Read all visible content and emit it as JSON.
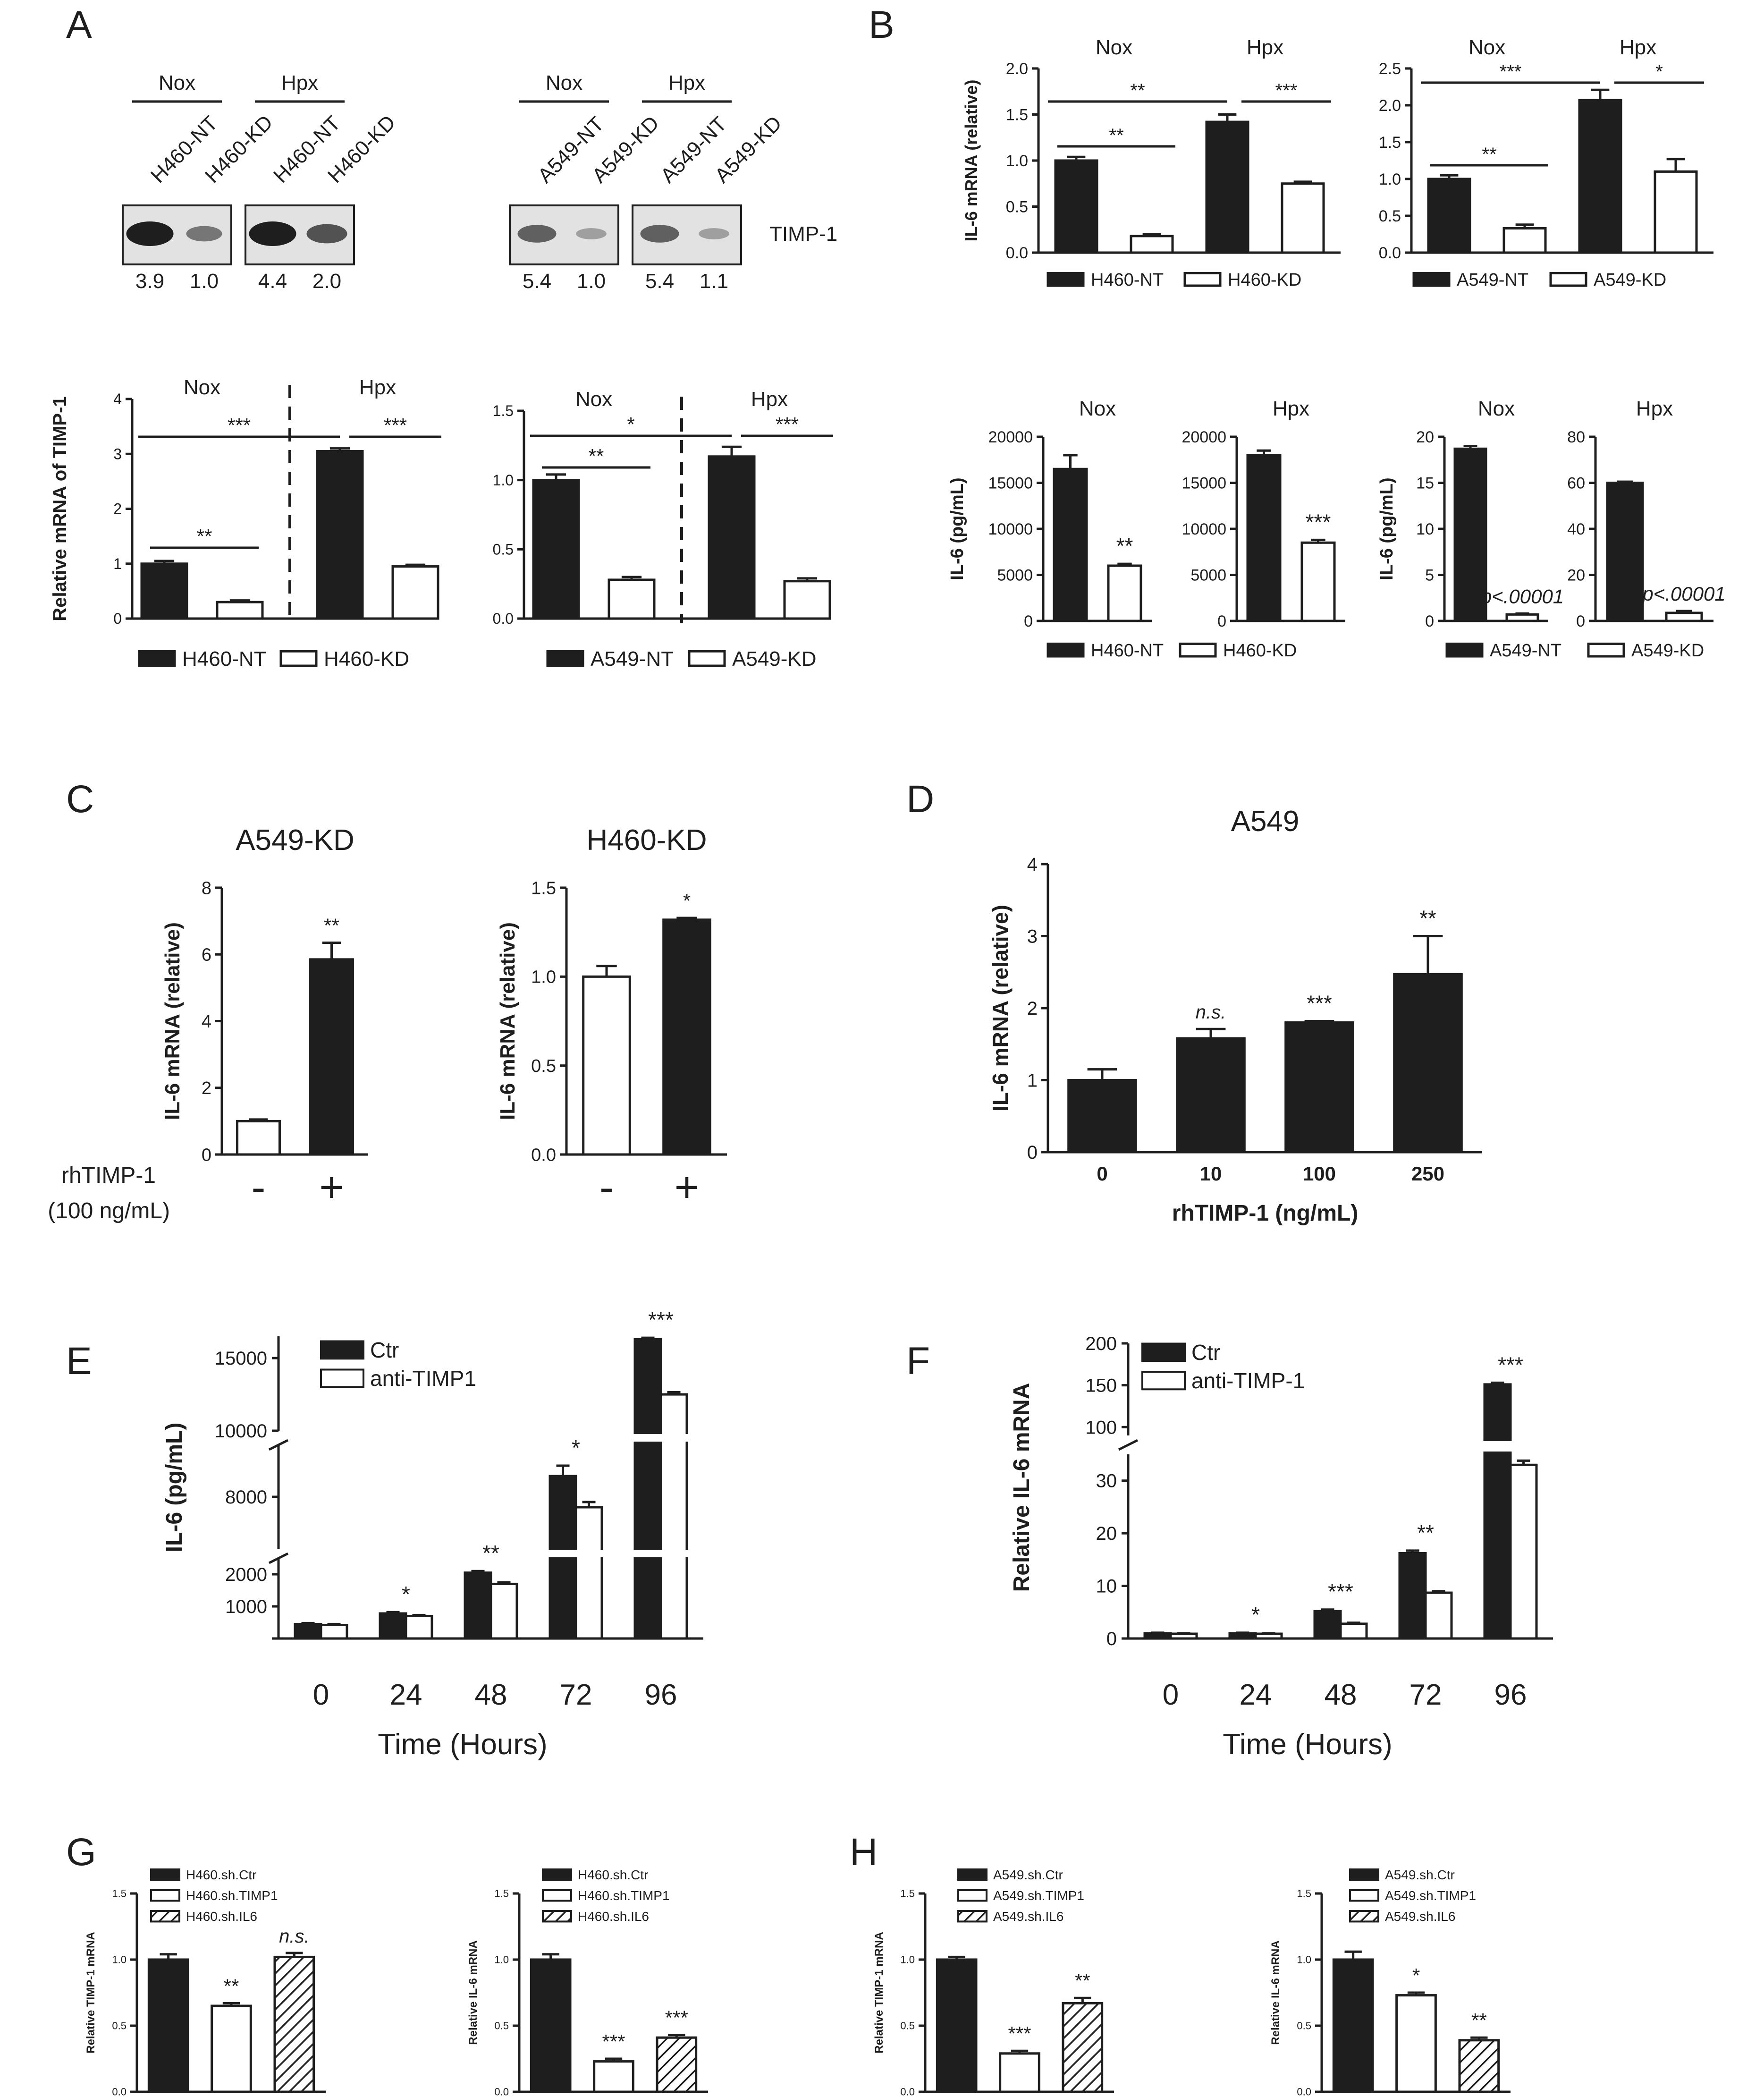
{
  "chart_data": [
    {
      "panel": "A",
      "type": "blot",
      "blots": [
        {
          "groups": [
            "Nox",
            "Hpx"
          ],
          "lanes": [
            "H460-NT",
            "H460-KD",
            "H460-NT",
            "H460-KD"
          ],
          "quant": [
            "3.9",
            "1.0",
            "4.4",
            "2.0"
          ]
        },
        {
          "groups": [
            "Nox",
            "Hpx"
          ],
          "lanes": [
            "A549-NT",
            "A549-KD",
            "A549-NT",
            "A549-KD"
          ],
          "quant": [
            "5.4",
            "1.0",
            "5.4",
            "1.1"
          ]
        }
      ],
      "label": "TIMP-1"
    },
    {
      "panel": "A",
      "type": "bar",
      "ylabel": "Relative mRNA of TIMP-1",
      "ylim": [
        0,
        4
      ],
      "yticks": [
        "0",
        "1",
        "2",
        "3",
        "4"
      ],
      "groups": [
        "Nox",
        "Hpx"
      ],
      "categories": [
        "H460-NT",
        "H460-KD",
        "H460-NT",
        "H460-KD"
      ],
      "values": [
        1.0,
        0.3,
        3.05,
        0.95
      ],
      "errors": [
        0.05,
        0.03,
        0.05,
        0.03
      ],
      "fills": [
        "black",
        "white",
        "black",
        "white"
      ],
      "legend": [
        "H460-NT",
        "H460-KD"
      ],
      "sig": [
        {
          "label": "***",
          "from": 0,
          "to": 2
        },
        {
          "label": "***",
          "from": 2,
          "to": 3
        },
        {
          "label": "**",
          "from": 0,
          "to": 1
        }
      ]
    },
    {
      "panel": "A",
      "type": "bar",
      "ylabel": "",
      "ylim": [
        0,
        1.5
      ],
      "yticks": [
        "0.0",
        "0.5",
        "1.0",
        "1.5"
      ],
      "groups": [
        "Nox",
        "Hpx"
      ],
      "categories": [
        "A549-NT",
        "A549-KD",
        "A549-NT",
        "A549-KD"
      ],
      "values": [
        1.0,
        0.28,
        1.17,
        0.27
      ],
      "errors": [
        0.04,
        0.02,
        0.07,
        0.02
      ],
      "fills": [
        "black",
        "white",
        "black",
        "white"
      ],
      "legend": [
        "A549-NT",
        "A549-KD"
      ],
      "sig": [
        {
          "label": "*",
          "from": 0,
          "to": 2
        },
        {
          "label": "***",
          "from": 2,
          "to": 3
        },
        {
          "label": "**",
          "from": 0,
          "to": 1
        }
      ]
    },
    {
      "panel": "B",
      "type": "bar",
      "ylabel": "IL-6 mRNA (relative)",
      "ylim": [
        0,
        2.0
      ],
      "yticks": [
        "0.0",
        "0.5",
        "1.0",
        "1.5",
        "2.0"
      ],
      "groups": [
        "Nox",
        "Hpx"
      ],
      "categories": [
        "H460-NT",
        "H460-KD",
        "H460-NT",
        "H460-KD"
      ],
      "values": [
        1.0,
        0.18,
        1.42,
        0.75
      ],
      "errors": [
        0.04,
        0.02,
        0.08,
        0.02
      ],
      "fills": [
        "black",
        "white",
        "black",
        "white"
      ],
      "legend": [
        "H460-NT",
        "H460-KD"
      ],
      "sig": [
        {
          "label": "**",
          "from": 0,
          "to": 2
        },
        {
          "label": "***",
          "from": 2,
          "to": 3
        },
        {
          "label": "**",
          "from": 0,
          "to": 1
        }
      ]
    },
    {
      "panel": "B",
      "type": "bar",
      "ylabel": "",
      "ylim": [
        0,
        2.5
      ],
      "yticks": [
        "0.0",
        "0.5",
        "1.0",
        "1.5",
        "2.0",
        "2.5"
      ],
      "groups": [
        "Nox",
        "Hpx"
      ],
      "categories": [
        "A549-NT",
        "A549-KD",
        "A549-NT",
        "A549-KD"
      ],
      "values": [
        1.0,
        0.33,
        2.07,
        1.1
      ],
      "errors": [
        0.05,
        0.05,
        0.14,
        0.17
      ],
      "fills": [
        "black",
        "white",
        "black",
        "white"
      ],
      "legend": [
        "A549-NT",
        "A549-KD"
      ],
      "sig": [
        {
          "label": "***",
          "from": 0,
          "to": 2
        },
        {
          "label": "*",
          "from": 2,
          "to": 3
        },
        {
          "label": "**",
          "from": 0,
          "to": 1
        }
      ]
    },
    {
      "panel": "B",
      "type": "bar",
      "title": "Nox",
      "ylabel": "IL-6 (pg/mL)",
      "ylim": [
        0,
        20000
      ],
      "yticks": [
        "0",
        "5000",
        "10000",
        "15000",
        "20000"
      ],
      "categories": [
        "H460-NT",
        "H460-KD"
      ],
      "values": [
        16500,
        6000
      ],
      "errors": [
        1500,
        200
      ],
      "fills": [
        "black",
        "white"
      ],
      "labels": [
        "",
        "**"
      ]
    },
    {
      "panel": "B",
      "type": "bar",
      "title": "Hpx",
      "ylabel": "",
      "ylim": [
        0,
        20000
      ],
      "yticks": [
        "0",
        "5000",
        "10000",
        "15000",
        "20000"
      ],
      "categories": [
        "H460-NT",
        "H460-KD"
      ],
      "values": [
        18000,
        8500
      ],
      "errors": [
        500,
        300
      ],
      "fills": [
        "black",
        "white"
      ],
      "labels": [
        "",
        "***"
      ],
      "legend": [
        "H460-NT",
        "H460-KD"
      ]
    },
    {
      "panel": "B",
      "type": "bar",
      "title": "Nox",
      "ylabel": "IL-6 (pg/mL)",
      "ylim": [
        0,
        20
      ],
      "yticks": [
        "0",
        "5",
        "10",
        "15",
        "20"
      ],
      "categories": [
        "A549-NT",
        "A549-KD"
      ],
      "values": [
        18.7,
        0.7
      ],
      "errors": [
        0.3,
        0.1
      ],
      "fills": [
        "black",
        "white"
      ],
      "labels": [
        "",
        "p<.00001"
      ]
    },
    {
      "panel": "B",
      "type": "bar",
      "title": "Hpx",
      "ylabel": "",
      "ylim": [
        0,
        80
      ],
      "yticks": [
        "0",
        "20",
        "40",
        "60",
        "80"
      ],
      "categories": [
        "A549-NT",
        "A549-KD"
      ],
      "values": [
        60,
        3.5
      ],
      "errors": [
        0.5,
        0.8
      ],
      "fills": [
        "black",
        "white"
      ],
      "labels": [
        "",
        "p<.00001"
      ],
      "legend": [
        "A549-NT",
        "A549-KD"
      ]
    },
    {
      "panel": "C",
      "type": "bar",
      "title": "A549-KD",
      "ylabel": "IL-6 mRNA (relative)",
      "ylim": [
        0,
        8
      ],
      "yticks": [
        "0",
        "2",
        "4",
        "6",
        "8"
      ],
      "categories": [
        "-",
        "+"
      ],
      "values": [
        1.0,
        5.85
      ],
      "errors": [
        0.05,
        0.5
      ],
      "fills": [
        "white",
        "black"
      ],
      "labels": [
        "",
        "**"
      ],
      "xlabel": "rhTIMP-1",
      "xlabel2": "(100 ng/mL)"
    },
    {
      "panel": "C",
      "type": "bar",
      "title": "H460-KD",
      "ylabel": "IL-6 mRNA (relative)",
      "ylim": [
        0,
        1.5
      ],
      "yticks": [
        "0.0",
        "0.5",
        "1.0",
        "1.5"
      ],
      "categories": [
        "-",
        "+"
      ],
      "values": [
        1.0,
        1.32
      ],
      "errors": [
        0.06,
        0.01
      ],
      "fills": [
        "white",
        "black"
      ],
      "labels": [
        "",
        "*"
      ]
    },
    {
      "panel": "D",
      "type": "bar",
      "title": "A549",
      "ylabel": "IL-6 mRNA (relative)",
      "xlabel": "rhTIMP-1 (ng/mL)",
      "ylim": [
        0,
        4
      ],
      "yticks": [
        "0",
        "1",
        "2",
        "3",
        "4"
      ],
      "categories": [
        "0",
        "10",
        "100",
        "250"
      ],
      "values": [
        1.0,
        1.58,
        1.8,
        2.47
      ],
      "errors": [
        0.15,
        0.13,
        0.02,
        0.53
      ],
      "fills": [
        "black",
        "black",
        "black",
        "black"
      ],
      "labels": [
        "",
        "n.s.",
        "***",
        "**"
      ]
    },
    {
      "panel": "E",
      "type": "bar",
      "xlabel": "Time (Hours)",
      "ylabel": "IL-6 (pg/mL)",
      "broken_axis": true,
      "yticks": [
        "1000",
        "2000",
        "8000",
        "10000",
        "15000"
      ],
      "categories": [
        "0",
        "24",
        "48",
        "72",
        "96"
      ],
      "series": [
        {
          "name": "Ctr",
          "values": [
            450,
            780,
            2050,
            8400,
            16300
          ],
          "errors": [
            30,
            40,
            50,
            200,
            100
          ]
        },
        {
          "name": "anti-TIMP1",
          "values": [
            420,
            700,
            1700,
            7800,
            12500
          ],
          "errors": [
            30,
            30,
            50,
            100,
            150
          ]
        }
      ],
      "labels": [
        "",
        "*",
        "**",
        "*",
        "***"
      ]
    },
    {
      "panel": "F",
      "type": "bar",
      "xlabel": "Time (Hours)",
      "ylabel": "Relative IL-6 mRNA",
      "broken_axis": true,
      "yticks": [
        "0",
        "10",
        "20",
        "30",
        "100",
        "150",
        "200"
      ],
      "categories": [
        "0",
        "24",
        "48",
        "72",
        "96"
      ],
      "series": [
        {
          "name": "Ctr",
          "values": [
            1,
            1,
            5.2,
            16.2,
            151
          ],
          "errors": [
            0.1,
            0.1,
            0.3,
            0.5,
            2
          ]
        },
        {
          "name": "anti-TIMP-1",
          "values": [
            0.9,
            0.9,
            2.8,
            8.7,
            33
          ],
          "errors": [
            0.1,
            0.1,
            0.2,
            0.3,
            0.8
          ]
        }
      ],
      "labels": [
        "",
        "*",
        "***",
        "**",
        "***"
      ]
    },
    {
      "panel": "G",
      "type": "bar",
      "ylabel": "Relative TIMP-1 mRNA",
      "ylim": [
        0,
        1.5
      ],
      "yticks": [
        "0.0",
        "0.5",
        "1.0",
        "1.5"
      ],
      "categories": [
        "H460.sh.Ctr",
        "H460.sh.TIMP1",
        "H460.sh.IL6"
      ],
      "values": [
        1.0,
        0.65,
        1.02
      ],
      "errors": [
        0.04,
        0.02,
        0.03
      ],
      "fills": [
        "black",
        "white",
        "hatch"
      ],
      "labels": [
        "",
        "**",
        "n.s."
      ],
      "legend": [
        "H460.sh.Ctr",
        "H460.sh.TIMP1",
        "H460.sh.IL6"
      ]
    },
    {
      "panel": "G",
      "type": "bar",
      "ylabel": "Relative IL-6 mRNA",
      "ylim": [
        0,
        1.5
      ],
      "yticks": [
        "0.0",
        "0.5",
        "1.0",
        "1.5"
      ],
      "categories": [
        "H460.sh.Ctr",
        "H460.sh.TIMP1",
        "H460.sh.IL6"
      ],
      "values": [
        1.0,
        0.23,
        0.41
      ],
      "errors": [
        0.04,
        0.02,
        0.02
      ],
      "fills": [
        "black",
        "white",
        "hatch"
      ],
      "labels": [
        "",
        "***",
        "***"
      ],
      "legend": [
        "H460.sh.Ctr",
        "H460.sh.TIMP1",
        "H460.sh.IL6"
      ]
    },
    {
      "panel": "H",
      "type": "bar",
      "ylabel": "Relative TIMP-1 mRNA",
      "ylim": [
        0,
        1.5
      ],
      "yticks": [
        "0.0",
        "0.5",
        "1.0",
        "1.5"
      ],
      "categories": [
        "A549.sh.Ctr",
        "A549.sh.TIMP1",
        "A549.sh.IL6"
      ],
      "values": [
        1.0,
        0.29,
        0.67
      ],
      "errors": [
        0.02,
        0.02,
        0.04
      ],
      "fills": [
        "black",
        "white",
        "hatch"
      ],
      "labels": [
        "",
        "***",
        "**"
      ],
      "legend": [
        "A549.sh.Ctr",
        "A549.sh.TIMP1",
        "A549.sh.IL6"
      ]
    },
    {
      "panel": "H",
      "type": "bar",
      "ylabel": "Relative IL-6 mRNA",
      "ylim": [
        0,
        1.5
      ],
      "yticks": [
        "0.0",
        "0.5",
        "1.0",
        "1.5"
      ],
      "categories": [
        "A549.sh.Ctr",
        "A549.sh.TIMP1",
        "A549.sh.IL6"
      ],
      "values": [
        1.0,
        0.73,
        0.39
      ],
      "errors": [
        0.06,
        0.02,
        0.02
      ],
      "fills": [
        "black",
        "white",
        "hatch"
      ],
      "labels": [
        "",
        "*",
        "**"
      ],
      "legend": [
        "A549.sh.Ctr",
        "A549.sh.TIMP1",
        "A549.sh.IL6"
      ]
    }
  ]
}
